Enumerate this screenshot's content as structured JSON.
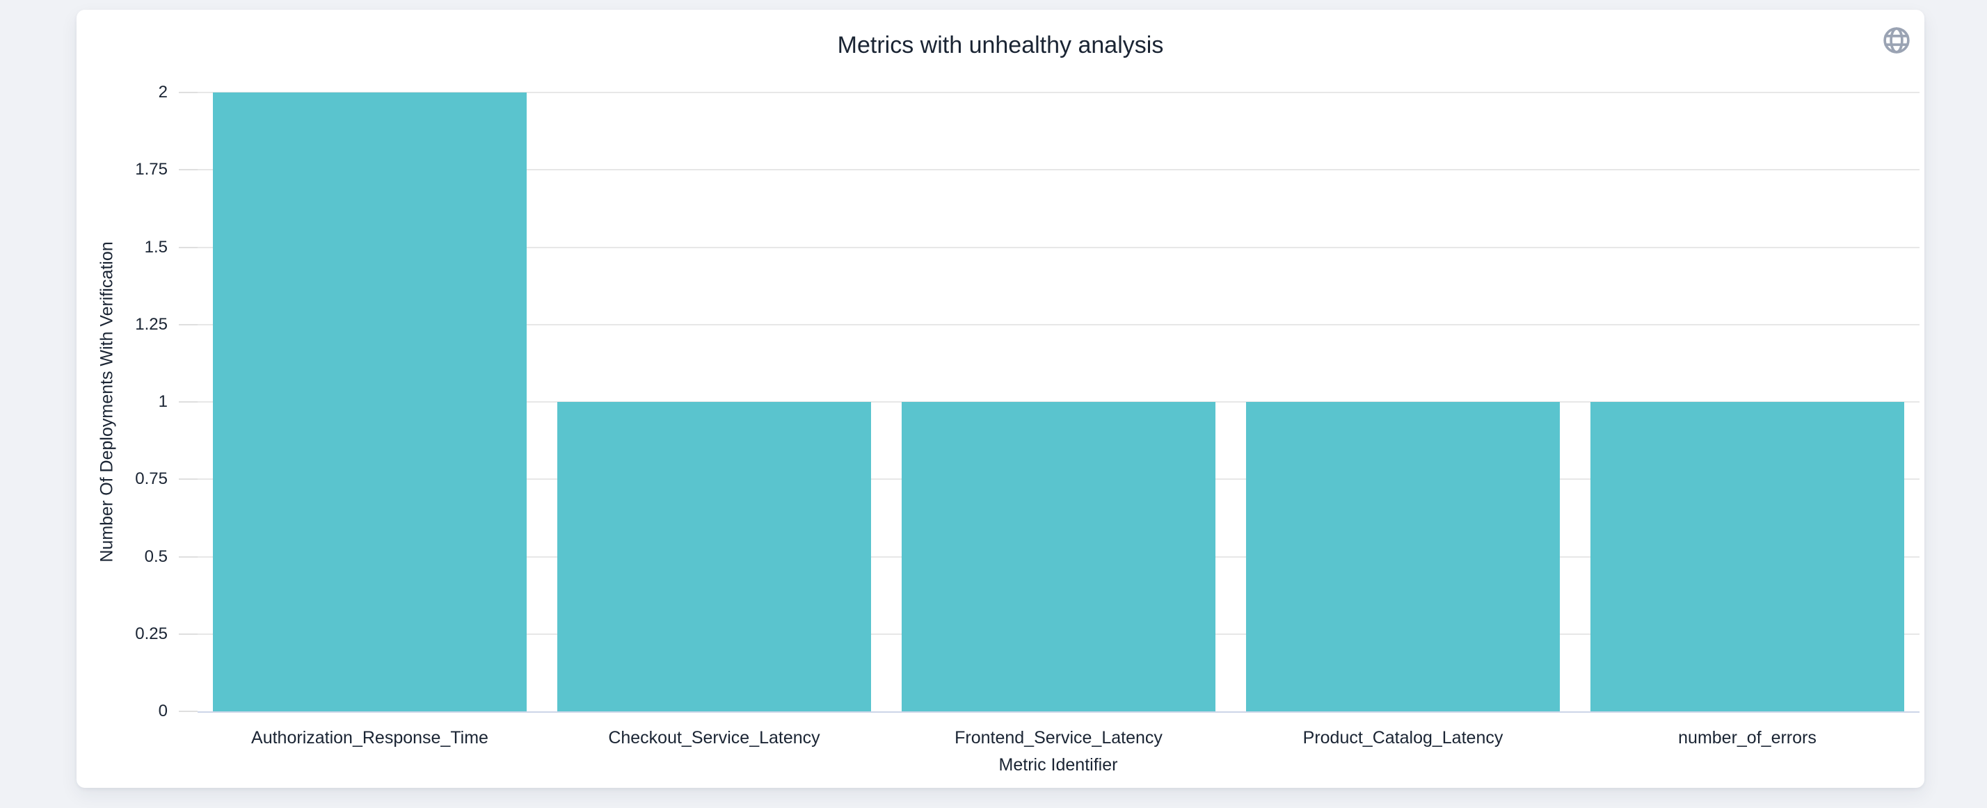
{
  "page": {
    "background_color": "#f0f2f6"
  },
  "card": {
    "background_color": "#ffffff",
    "globe_icon": "globe-icon"
  },
  "chart_data": {
    "type": "bar",
    "title": "Metrics with unhealthy analysis",
    "xlabel": "Metric Identifier",
    "ylabel": "Number Of Deployments With Verification",
    "categories": [
      "Authorization_Response_Time",
      "Checkout_Service_Latency",
      "Frontend_Service_Latency",
      "Product_Catalog_Latency",
      "number_of_errors"
    ],
    "values": [
      2,
      1,
      1,
      1,
      1
    ],
    "ylim": [
      0,
      2
    ],
    "yticks": [
      0,
      0.25,
      0.5,
      0.75,
      1,
      1.25,
      1.5,
      1.75,
      2
    ],
    "ytick_labels": [
      "0",
      "0.25",
      "0.5",
      "0.75",
      "1",
      "1.25",
      "1.5",
      "1.75",
      "2"
    ],
    "grid": true,
    "legend": false,
    "colors": {
      "bar": "#5ac4ce",
      "grid": "#e7e7e7",
      "tick": "#dfdfdf",
      "axis_line": "#ccd5e8",
      "text": "#1a2433",
      "icon": "#9aa3b3"
    }
  }
}
